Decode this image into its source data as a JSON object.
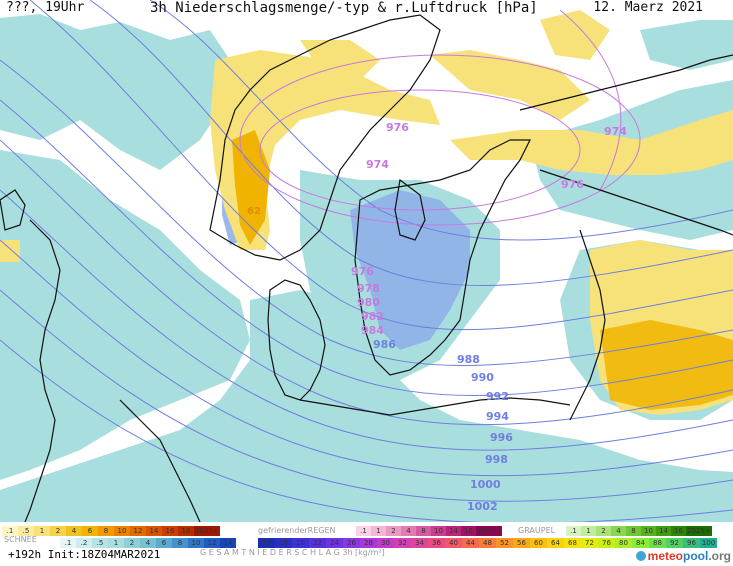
{
  "header": {
    "left": "???, 19Uhr",
    "title": "3h Niederschlagsmenge/-typ & r.Luftdruck [hPa]",
    "date": "12. Maerz 2021"
  },
  "map": {
    "isobar_labels": {
      "v976a": "976",
      "v974a": "974",
      "v974b": "974",
      "v976b": "976",
      "v976c": "976",
      "v978": "978",
      "v980": "980",
      "v982": "982",
      "v984": "984",
      "v986": "986",
      "v988": "988",
      "v990": "990",
      "v992": "992",
      "v994": "994",
      "v996": "996",
      "v998": "998",
      "v1000": "1000",
      "v1002": "1002"
    },
    "precip_label": "62",
    "colors": {
      "snow": "#a9dede",
      "rain_light": "#f7e27a",
      "rain_heavy": "#f0b400",
      "mixed": "#8fb0e8",
      "isobar": "#6f7ee0",
      "low_isobar": "#c879e0",
      "coast": "#111111"
    }
  },
  "legend": {
    "rain_scale": [
      ".1",
      ".5",
      "1",
      "2",
      "4",
      "6",
      "8",
      "10",
      "12",
      "14",
      "16",
      "18",
      "2025+"
    ],
    "freezing_label": "gefrierenderREGEN",
    "freezing_scale": [
      ".1",
      "1",
      "2",
      "4",
      "8",
      "10",
      "14",
      "16",
      "2025+"
    ],
    "graupel_label": "GRAUPEL",
    "graupel_scale": [
      ".1",
      "1",
      "2",
      "4",
      "8",
      "10",
      "14",
      "16",
      "2025+"
    ],
    "snow_label": "SCHNEE",
    "snow_scale": [
      ".1",
      ".2",
      ".5",
      "1",
      "2",
      "4",
      "6",
      "8",
      "10",
      "12",
      "14"
    ],
    "total_scale": [
      "16",
      "18",
      "20",
      "22",
      "24",
      "26",
      "28",
      "30",
      "32",
      "34",
      "36",
      "40",
      "44",
      "48",
      "52",
      "56",
      "60",
      "64",
      "68",
      "72",
      "76",
      "80",
      "84",
      "88",
      "92",
      "96",
      "100"
    ],
    "total_label": "G E S A M T N I E D E R S C H L A G   3h   [kg/m²]"
  },
  "footer": {
    "run": "+192h  Init:18Z04MAR2021",
    "brand_a": "meteo",
    "brand_b": "pool",
    "brand_c": ".org"
  }
}
